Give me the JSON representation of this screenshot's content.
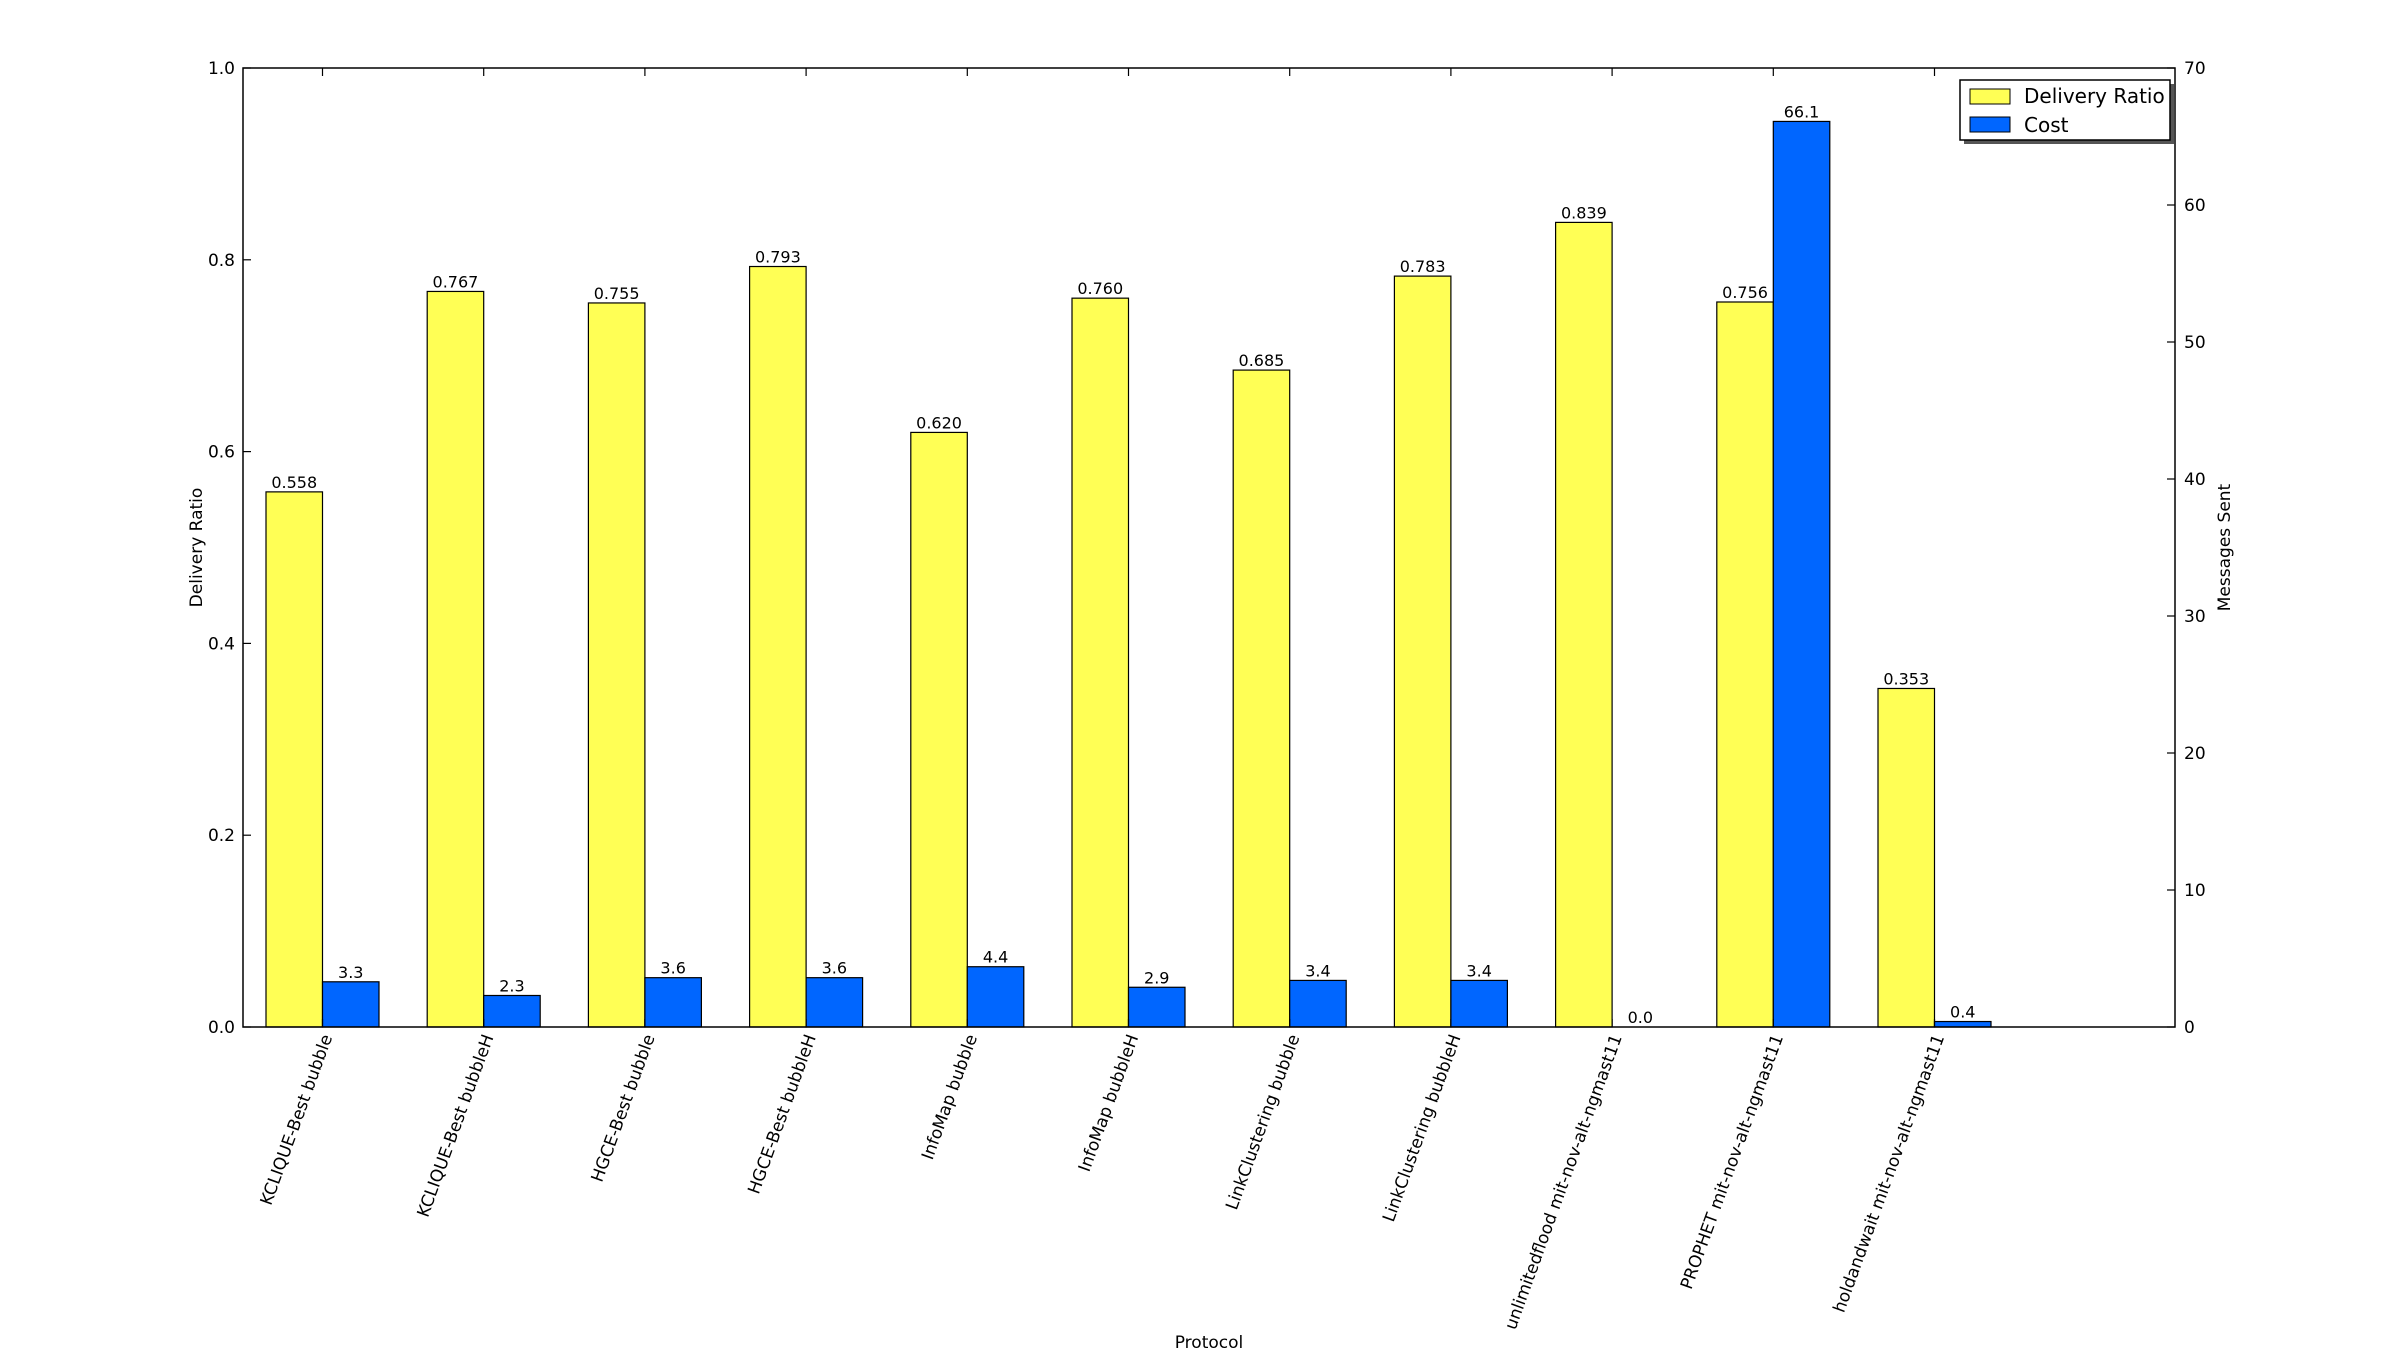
{
  "chart_data": {
    "type": "bar",
    "xlabel": "Protocol",
    "ylabel_left": "Delivery Ratio",
    "ylabel_right": "Messages Sent",
    "ylim_left": [
      0,
      1.0
    ],
    "ylim_right": [
      0,
      70
    ],
    "yticks_left": [
      "0.0",
      "0.2",
      "0.4",
      "0.6",
      "0.8",
      "1.0"
    ],
    "yticks_right": [
      "0",
      "10",
      "20",
      "30",
      "40",
      "50",
      "60",
      "70"
    ],
    "categories": [
      "KCLIQUE-Best bubble",
      "KCLIQUE-Best bubbleH",
      "HGCE-Best bubble",
      "HGCE-Best bubbleH",
      "InfoMap bubble",
      "InfoMap bubbleH",
      "LinkClustering bubble",
      "LinkClustering bubbleH",
      "unlimitedflood mit-nov-alt-ngmast11",
      "PROPHET mit-nov-alt-ngmast11",
      "holdandwait mit-nov-alt-ngmast11"
    ],
    "series": [
      {
        "name": "Delivery Ratio",
        "axis": "left",
        "color": "#ffff55",
        "values": [
          0.558,
          0.767,
          0.755,
          0.793,
          0.62,
          0.76,
          0.685,
          0.783,
          0.839,
          0.756,
          0.353
        ],
        "labels": [
          "0.558",
          "0.767",
          "0.755",
          "0.793",
          "0.620",
          "0.760",
          "0.685",
          "0.783",
          "0.839",
          "0.756",
          "0.353"
        ]
      },
      {
        "name": "Cost",
        "axis": "right",
        "color": "#0066ff",
        "values": [
          3.3,
          2.3,
          3.6,
          3.6,
          4.4,
          2.9,
          3.4,
          3.4,
          0.0,
          66.1,
          0.4
        ],
        "labels": [
          "3.3",
          "2.3",
          "3.6",
          "3.6",
          "4.4",
          "2.9",
          "3.4",
          "3.4",
          "0.0",
          "66.1",
          "0.4"
        ]
      }
    ],
    "legend": "top-right",
    "grid": false
  }
}
